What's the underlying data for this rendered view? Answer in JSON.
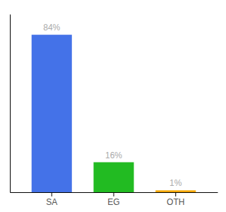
{
  "chart_data": {
    "type": "bar",
    "categories": [
      "SA",
      "EG",
      "OTH"
    ],
    "values": [
      84,
      16,
      1
    ],
    "value_labels": [
      "84%",
      "16%",
      "1%"
    ],
    "colors": [
      "#4472e8",
      "#22bb22",
      "#f5a800"
    ],
    "ylim": [
      0,
      95
    ],
    "tick_labels": "x",
    "data_labels": true,
    "grid": false
  }
}
